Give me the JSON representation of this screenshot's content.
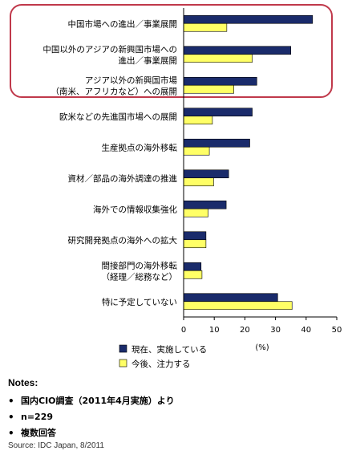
{
  "chart_data": {
    "type": "bar",
    "orientation": "horizontal",
    "title": "",
    "xlabel": "(%)",
    "ylabel": "",
    "xlim": [
      0,
      50
    ],
    "x_ticks": [
      "0",
      "10",
      "20",
      "30",
      "40",
      "50"
    ],
    "grid": false,
    "legend_position": "bottom-left",
    "categories": [
      [
        "中国市場への進出／事業展開"
      ],
      [
        "中国以外のアジアの新興国市場への",
        "進出／事業展開"
      ],
      [
        "アジア以外の新興国市場",
        "（南米、アフリカなど）への展開"
      ],
      [
        "欧米などの先進国市場への展開"
      ],
      [
        "生産拠点の海外移転"
      ],
      [
        "資材／部品の海外調達の推進"
      ],
      [
        "海外での情報収集強化"
      ],
      [
        "研究開発拠点の海外への拡大"
      ],
      [
        "間接部門の海外移転",
        "（経理／総務など）"
      ],
      [
        "特に予定していない"
      ]
    ],
    "series": [
      {
        "name": "現在、実施している",
        "color": "#1a2b6b",
        "values": [
          42.1,
          35.0,
          23.9,
          22.4,
          21.6,
          14.7,
          13.9,
          7.3,
          5.7,
          30.7
        ]
      },
      {
        "name": "今後、注力する",
        "color": "#ffff66",
        "values": [
          14.1,
          22.4,
          16.4,
          9.4,
          8.4,
          9.8,
          8.0,
          7.3,
          6.0,
          35.4
        ]
      }
    ],
    "highlight_color": "#c0394b"
  },
  "notes": {
    "title": "Notes:",
    "bullet": "•",
    "items": [
      "国内CIO調査（2011年4月実施）より",
      "n=229",
      "複数回答"
    ],
    "source": "Source: IDC Japan, 8/2011"
  }
}
